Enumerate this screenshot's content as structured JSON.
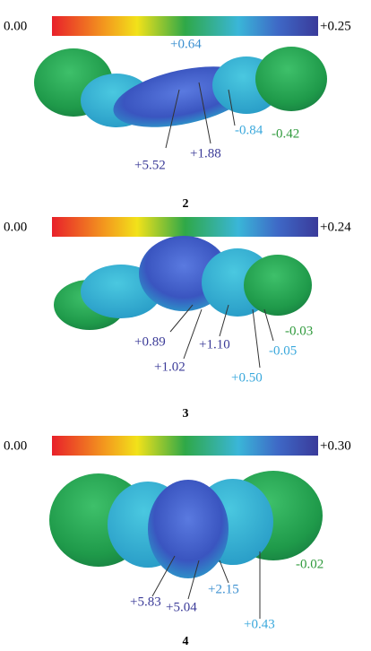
{
  "panels": [
    {
      "scale": {
        "min": "0.00",
        "max": "+0.25"
      },
      "compound": "2",
      "labels": [
        {
          "text": "+0.64",
          "color": "#3a8fd0"
        },
        {
          "text": "-0.84",
          "color": "#3aa8dc"
        },
        {
          "text": "-0.42",
          "color": "#2f9a3c"
        },
        {
          "text": "+5.52",
          "color": "#3b3b98"
        },
        {
          "text": "+1.88",
          "color": "#3b3b98"
        }
      ]
    },
    {
      "scale": {
        "min": "0.00",
        "max": "+0.24"
      },
      "compound": "3",
      "labels": [
        {
          "text": "+0.89",
          "color": "#3b3b98"
        },
        {
          "text": "+1.02",
          "color": "#3b3b98"
        },
        {
          "text": "+1.10",
          "color": "#3b3b98"
        },
        {
          "text": "-0.05",
          "color": "#3aa8dc"
        },
        {
          "text": "-0.03",
          "color": "#2f9a3c"
        },
        {
          "text": "+0.50",
          "color": "#3aa8dc"
        }
      ]
    },
    {
      "scale": {
        "min": "0.00",
        "max": "+0.30"
      },
      "compound": "4",
      "labels": [
        {
          "text": "+5.83",
          "color": "#3b3b98"
        },
        {
          "text": "+5.04",
          "color": "#3b3b98"
        },
        {
          "text": "+2.15",
          "color": "#3a8fd0"
        },
        {
          "text": "+0.43",
          "color": "#3aa8dc"
        },
        {
          "text": "-0.02",
          "color": "#2f9a3c"
        }
      ]
    }
  ]
}
